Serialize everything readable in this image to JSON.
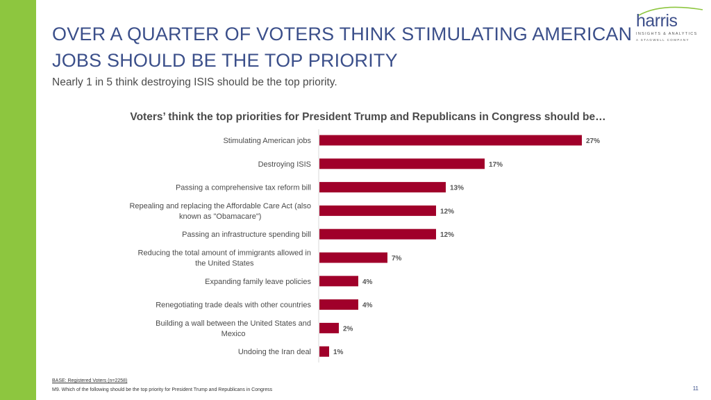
{
  "slide": {
    "title": "OVER A QUARTER OF VOTERS THINK STIMULATING AMERICAN JOBS SHOULD BE THE TOP PRIORITY",
    "subtitle": "Nearly 1 in 5 think destroying ISIS should be the top priority.",
    "page_number": "11"
  },
  "logo": {
    "word": "harris",
    "line1": "INSIGHTS & ANALYTICS",
    "line2": "A STAGWELL COMPANY"
  },
  "footer": {
    "base": "BASE: Registered Voters (n=2258)",
    "question": "M9. Which of the following should be the top priority for President Trump and Republicans in Congress"
  },
  "colors": {
    "bar": "#a0002a",
    "accent_green": "#8dc63f",
    "title_blue": "#3b4f8a"
  },
  "chart_data": {
    "type": "bar",
    "orientation": "horizontal",
    "title": "Voters’ think the top priorities for President Trump and Republicans in Congress should be…",
    "categories": [
      [
        "Stimulating American jobs"
      ],
      [
        "Destroying ISIS"
      ],
      [
        "Passing a comprehensive tax reform bill"
      ],
      [
        "Repealing and replacing the Affordable Care Act (also",
        "known as \"Obamacare\")"
      ],
      [
        "Passing an infrastructure spending bill"
      ],
      [
        "Reducing the total amount of immigrants allowed in",
        "the United States"
      ],
      [
        "Expanding family leave policies"
      ],
      [
        "Renegotiating trade deals with other countries"
      ],
      [
        "Building a wall between the United States and",
        "Mexico"
      ],
      [
        "Undoing the Iran deal"
      ]
    ],
    "values": [
      27,
      17,
      13,
      12,
      12,
      7,
      4,
      4,
      2,
      1
    ],
    "value_labels": [
      "27%",
      "17%",
      "13%",
      "12%",
      "12%",
      "7%",
      "4%",
      "4%",
      "2%",
      "1%"
    ],
    "unit": "%",
    "xlim": [
      0,
      27
    ]
  }
}
